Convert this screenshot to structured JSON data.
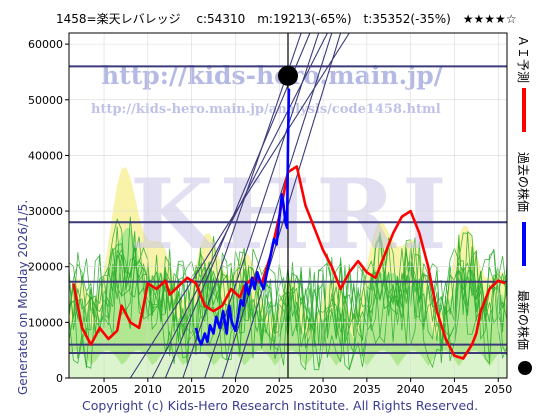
{
  "header": {
    "title": "1458=楽天レバレッジ　 c:54310　m:19213(-65%)　t:35352(-35%)　★★★★☆"
  },
  "side": {
    "generated": "Generated on Monday 2026/1/5."
  },
  "watermark": {
    "url": "http://kids-hero.main.jp/",
    "page_url": "http://kids-hero.main.jp/analysis/code1458.html",
    "logo": "KHRI"
  },
  "legend": {
    "ai_label": "ＡＩ予測",
    "past_label": "過去の株価",
    "latest_label": "最新の株価"
  },
  "footer": {
    "copyright": "Copyright (c) Kids-Hero Research Institute. All Rights Reserved."
  },
  "colors": {
    "ai_forecast": "#ff0000",
    "past_price": "#0000ff",
    "latest_price": "#000000",
    "level_line": "#3b3b7a",
    "trend_line": "#3b3b7a",
    "band_yellow": "#f7f2a0",
    "band_green": "#9be38a",
    "band_line": "#2eae2e"
  },
  "chart_data": {
    "type": "line",
    "xlim": [
      2001,
      2051
    ],
    "ylim": [
      0,
      62000
    ],
    "x_ticks": [
      "2005",
      "2010",
      "2015",
      "2020",
      "2025",
      "2030",
      "2035",
      "2040",
      "2045",
      "2050"
    ],
    "y_ticks": [
      "0",
      "10000",
      "20000",
      "30000",
      "40000",
      "50000",
      "60000"
    ],
    "x_tick_values": [
      2005,
      2010,
      2015,
      2020,
      2025,
      2030,
      2035,
      2040,
      2045,
      2050
    ],
    "y_tick_values": [
      0,
      10000,
      20000,
      30000,
      40000,
      50000,
      60000
    ],
    "current_year": 2026,
    "current_price": 54310,
    "horizontal_levels": [
      56000,
      28000,
      17300,
      6000,
      4500
    ],
    "past_price_series": {
      "name": "過去の株価",
      "points": [
        [
          2015.5,
          9000
        ],
        [
          2015.8,
          7000
        ],
        [
          2016.1,
          6000
        ],
        [
          2016.5,
          8000
        ],
        [
          2016.8,
          6500
        ],
        [
          2017.1,
          9500
        ],
        [
          2017.5,
          8000
        ],
        [
          2017.8,
          11000
        ],
        [
          2018.2,
          9000
        ],
        [
          2018.6,
          12000
        ],
        [
          2019.0,
          8000
        ],
        [
          2019.3,
          13000
        ],
        [
          2019.6,
          10000
        ],
        [
          2020.0,
          8500
        ],
        [
          2020.3,
          11000
        ],
        [
          2020.6,
          14000
        ],
        [
          2020.9,
          13000
        ],
        [
          2021.2,
          17000
        ],
        [
          2021.5,
          15000
        ],
        [
          2021.9,
          18000
        ],
        [
          2022.2,
          16000
        ],
        [
          2022.5,
          19000
        ],
        [
          2022.8,
          17500
        ],
        [
          2023.2,
          16000
        ],
        [
          2023.6,
          19000
        ],
        [
          2024.0,
          22000
        ],
        [
          2024.4,
          25000
        ],
        [
          2024.7,
          24000
        ],
        [
          2024.9,
          27000
        ],
        [
          2025.1,
          30000
        ],
        [
          2025.3,
          33000
        ],
        [
          2025.5,
          31000
        ],
        [
          2025.7,
          28000
        ],
        [
          2025.9,
          27000
        ],
        [
          2026.0,
          42000
        ],
        [
          2026.1,
          52000
        ]
      ]
    },
    "ai_forecast_series": {
      "name": "ＡＩ予測",
      "points": [
        [
          2001.5,
          17000
        ],
        [
          2002.5,
          9000
        ],
        [
          2003.5,
          6000
        ],
        [
          2004.5,
          9000
        ],
        [
          2005.5,
          7000
        ],
        [
          2006.5,
          8500
        ],
        [
          2007.0,
          13000
        ],
        [
          2008.0,
          10000
        ],
        [
          2009.0,
          9000
        ],
        [
          2009.5,
          13000
        ],
        [
          2010.0,
          17000
        ],
        [
          2011.0,
          16000
        ],
        [
          2012.0,
          17500
        ],
        [
          2012.5,
          15000
        ],
        [
          2013.5,
          16500
        ],
        [
          2014.5,
          18000
        ],
        [
          2015.5,
          17000
        ],
        [
          2016.5,
          13000
        ],
        [
          2017.5,
          12000
        ],
        [
          2018.5,
          13000
        ],
        [
          2019.5,
          16000
        ],
        [
          2020.5,
          14500
        ],
        [
          2021.0,
          16500
        ],
        [
          2022.0,
          18000
        ],
        [
          2023.0,
          17000
        ],
        [
          2024.0,
          22000
        ],
        [
          2025.0,
          29000
        ],
        [
          2026.0,
          37000
        ],
        [
          2027.0,
          38000
        ],
        [
          2028.0,
          31000
        ],
        [
          2029.0,
          27000
        ],
        [
          2030.0,
          23000
        ],
        [
          2031.0,
          20000
        ],
        [
          2032.0,
          16000
        ],
        [
          2033.0,
          19000
        ],
        [
          2034.0,
          21000
        ],
        [
          2035.0,
          19000
        ],
        [
          2036.0,
          18000
        ],
        [
          2037.0,
          22000
        ],
        [
          2038.0,
          26000
        ],
        [
          2039.0,
          29000
        ],
        [
          2040.0,
          30000
        ],
        [
          2041.0,
          26000
        ],
        [
          2042.0,
          20000
        ],
        [
          2043.0,
          12000
        ],
        [
          2044.0,
          7000
        ],
        [
          2045.0,
          4000
        ],
        [
          2046.0,
          3500
        ],
        [
          2047.0,
          6000
        ],
        [
          2047.5,
          8000
        ],
        [
          2048.0,
          12000
        ],
        [
          2049.0,
          16000
        ],
        [
          2050.0,
          17500
        ],
        [
          2050.8,
          17000
        ]
      ]
    }
  }
}
